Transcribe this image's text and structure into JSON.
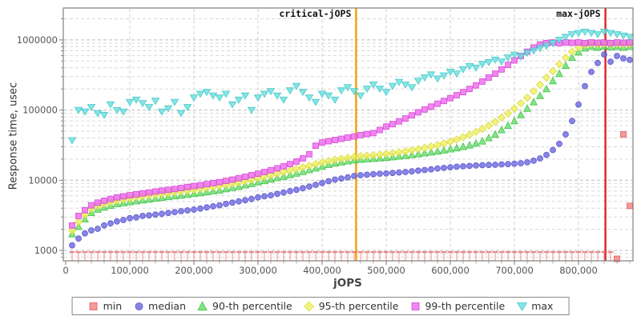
{
  "chart_data": {
    "type": "scatter",
    "title": "",
    "xlabel": "jOPS",
    "ylabel": "Response time, usec",
    "y_scale": "log",
    "grid": true,
    "legend_position": "bottom",
    "x_axis": {
      "tick_labels": [
        "0",
        "100,000",
        "200,000",
        "300,000",
        "400,000",
        "500,000",
        "600,000",
        "700,000",
        "800,000"
      ],
      "tick_values": [
        0,
        100000,
        200000,
        300000,
        400000,
        500000,
        600000,
        700000,
        800000
      ],
      "minor_tick_step": 20000,
      "max": 885000
    },
    "y_axis": {
      "tick_labels": [
        "1000",
        "10000",
        "100000",
        "1000000"
      ],
      "tick_values": [
        1000,
        10000,
        100000,
        1000000
      ],
      "min": 710,
      "max": 2850000
    },
    "x": [
      10000,
      20000,
      30000,
      40000,
      50000,
      60000,
      70000,
      80000,
      90000,
      100000,
      110000,
      120000,
      130000,
      140000,
      150000,
      160000,
      170000,
      180000,
      190000,
      200000,
      210000,
      220000,
      230000,
      240000,
      250000,
      260000,
      270000,
      280000,
      290000,
      300000,
      310000,
      320000,
      330000,
      340000,
      350000,
      360000,
      370000,
      380000,
      390000,
      400000,
      410000,
      420000,
      430000,
      440000,
      450000,
      460000,
      470000,
      480000,
      490000,
      500000,
      510000,
      520000,
      530000,
      540000,
      550000,
      560000,
      570000,
      580000,
      590000,
      600000,
      610000,
      620000,
      630000,
      640000,
      650000,
      660000,
      670000,
      680000,
      690000,
      700000,
      710000,
      720000,
      730000,
      740000,
      750000,
      760000,
      770000,
      780000,
      790000,
      800000,
      810000,
      820000,
      830000,
      840000,
      850000,
      860000,
      870000,
      880000
    ],
    "series": [
      {
        "name": "min",
        "marker": "square",
        "color": "#f28080",
        "edge": "#e05555",
        "null_style": "clipped-bottom-tick",
        "values": [
          null,
          null,
          null,
          null,
          null,
          null,
          null,
          null,
          null,
          null,
          null,
          null,
          null,
          null,
          null,
          null,
          null,
          null,
          null,
          null,
          null,
          null,
          null,
          null,
          null,
          null,
          null,
          null,
          null,
          null,
          null,
          null,
          null,
          null,
          null,
          null,
          null,
          null,
          null,
          null,
          null,
          null,
          null,
          null,
          null,
          null,
          null,
          null,
          null,
          null,
          null,
          null,
          null,
          null,
          null,
          null,
          null,
          null,
          null,
          null,
          null,
          null,
          null,
          null,
          null,
          null,
          null,
          null,
          null,
          null,
          null,
          null,
          null,
          null,
          null,
          null,
          null,
          null,
          null,
          null,
          null,
          null,
          null,
          null,
          null,
          760,
          45000,
          4300
        ]
      },
      {
        "name": "median",
        "marker": "circle",
        "color": "#6a66e0",
        "edge": "#514dc9",
        "values": [
          1180,
          1480,
          1750,
          1930,
          2030,
          2270,
          2420,
          2590,
          2710,
          2880,
          2950,
          3100,
          3150,
          3230,
          3320,
          3420,
          3520,
          3620,
          3720,
          3820,
          3950,
          4100,
          4250,
          4400,
          4600,
          4800,
          5000,
          5200,
          5400,
          5700,
          5900,
          6100,
          6400,
          6700,
          7000,
          7300,
          7700,
          8100,
          8600,
          9100,
          9700,
          10200,
          10600,
          11000,
          11500,
          11800,
          12000,
          12200,
          12400,
          12500,
          12700,
          12900,
          13100,
          13400,
          13700,
          14000,
          14300,
          14700,
          15000,
          15300,
          15600,
          15800,
          16000,
          16200,
          16400,
          16500,
          16600,
          16800,
          17000,
          17200,
          17500,
          18000,
          19000,
          20500,
          23000,
          27000,
          33000,
          45000,
          70000,
          120000,
          220000,
          350000,
          470000,
          620000,
          490000,
          590000,
          545000,
          520000
        ]
      },
      {
        "name": "90-th percentile",
        "marker": "triangle-up",
        "color": "#63dd68",
        "edge": "#3fbf46",
        "values": [
          1710,
          2180,
          2790,
          3440,
          3850,
          4100,
          4350,
          4600,
          4750,
          4900,
          5050,
          5200,
          5350,
          5500,
          5650,
          5800,
          5950,
          6100,
          6250,
          6400,
          6600,
          6800,
          7000,
          7200,
          7500,
          7800,
          8100,
          8500,
          8900,
          9400,
          9800,
          10300,
          10800,
          11300,
          11900,
          12500,
          13200,
          14000,
          14800,
          15700,
          16600,
          17400,
          18100,
          18700,
          19300,
          19700,
          20000,
          20300,
          20600,
          21000,
          21400,
          21900,
          22400,
          23000,
          23600,
          24300,
          25000,
          25800,
          26700,
          27700,
          28800,
          30000,
          31500,
          33500,
          36000,
          40000,
          45000,
          52000,
          60000,
          70000,
          85000,
          105000,
          130000,
          160000,
          200000,
          260000,
          330000,
          430000,
          560000,
          670000,
          760000,
          800000,
          780000,
          810000,
          790000,
          800000,
          780000,
          800000
        ]
      },
      {
        "name": "95-th percentile",
        "marker": "diamond",
        "color": "#efef5e",
        "edge": "#d8d838",
        "values": [
          1910,
          2550,
          3230,
          3900,
          4300,
          4600,
          4850,
          5100,
          5300,
          5500,
          5700,
          5900,
          6050,
          6200,
          6350,
          6500,
          6700,
          6900,
          7100,
          7300,
          7500,
          7750,
          8000,
          8300,
          8600,
          8900,
          9300,
          9700,
          10200,
          10700,
          11200,
          11800,
          12400,
          13100,
          13800,
          14500,
          15300,
          16100,
          17000,
          17900,
          18800,
          19600,
          20300,
          20900,
          21500,
          22000,
          22400,
          22800,
          23300,
          23800,
          24400,
          25100,
          25900,
          26800,
          27800,
          29000,
          30300,
          31800,
          33500,
          35500,
          38000,
          41000,
          44500,
          49000,
          54000,
          60000,
          68000,
          78000,
          90000,
          105000,
          125000,
          150000,
          185000,
          230000,
          290000,
          360000,
          450000,
          560000,
          680000,
          780000,
          850000,
          880000,
          860000,
          880000,
          870000,
          880000,
          860000,
          880000
        ]
      },
      {
        "name": "99-th percentile",
        "marker": "square",
        "color": "#ee66ee",
        "edge": "#d23fd2",
        "values": [
          2270,
          3100,
          3750,
          4390,
          4800,
          5100,
          5400,
          5700,
          5900,
          6100,
          6300,
          6500,
          6700,
          6900,
          7100,
          7300,
          7500,
          7750,
          8000,
          8250,
          8500,
          8800,
          9100,
          9400,
          9800,
          10200,
          10700,
          11200,
          11800,
          12400,
          13100,
          13900,
          14800,
          15800,
          17000,
          18500,
          20500,
          23500,
          31000,
          34500,
          36000,
          37500,
          39000,
          40500,
          42000,
          44000,
          45500,
          47000,
          52000,
          58000,
          63000,
          69000,
          76000,
          84000,
          93000,
          102000,
          112000,
          123000,
          135000,
          148000,
          163000,
          180000,
          200000,
          225000,
          255000,
          290000,
          330000,
          380000,
          440000,
          510000,
          590000,
          680000,
          780000,
          860000,
          900000,
          920000,
          900000,
          920000,
          910000,
          920000,
          900000,
          920000,
          910000,
          920000,
          900000,
          920000,
          910000,
          920000
        ]
      },
      {
        "name": "max",
        "marker": "triangle-down",
        "color": "#66dede",
        "edge": "#3fc4c4",
        "values": [
          37000,
          100000,
          95000,
          110000,
          90000,
          85000,
          120000,
          100000,
          95000,
          130000,
          140000,
          125000,
          110000,
          135000,
          95000,
          105000,
          130000,
          90000,
          110000,
          150000,
          170000,
          180000,
          160000,
          150000,
          170000,
          120000,
          140000,
          160000,
          100000,
          150000,
          170000,
          185000,
          160000,
          140000,
          190000,
          220000,
          180000,
          150000,
          130000,
          170000,
          160000,
          140000,
          190000,
          210000,
          185000,
          160000,
          200000,
          230000,
          200000,
          180000,
          220000,
          250000,
          230000,
          210000,
          260000,
          290000,
          320000,
          280000,
          310000,
          350000,
          330000,
          380000,
          420000,
          400000,
          450000,
          480000,
          520000,
          490000,
          560000,
          610000,
          580000,
          650000,
          700000,
          760000,
          820000,
          900000,
          1000000,
          1100000,
          1200000,
          1250000,
          1300000,
          1250000,
          1200000,
          1300000,
          1250000,
          1200000,
          1150000,
          1100000
        ]
      }
    ],
    "annotations": [
      {
        "label": "critical-jOPS",
        "x": 453000,
        "color": "#f2a200"
      },
      {
        "label": "max-jOPS",
        "x": 842000,
        "color": "#e02222"
      }
    ]
  }
}
